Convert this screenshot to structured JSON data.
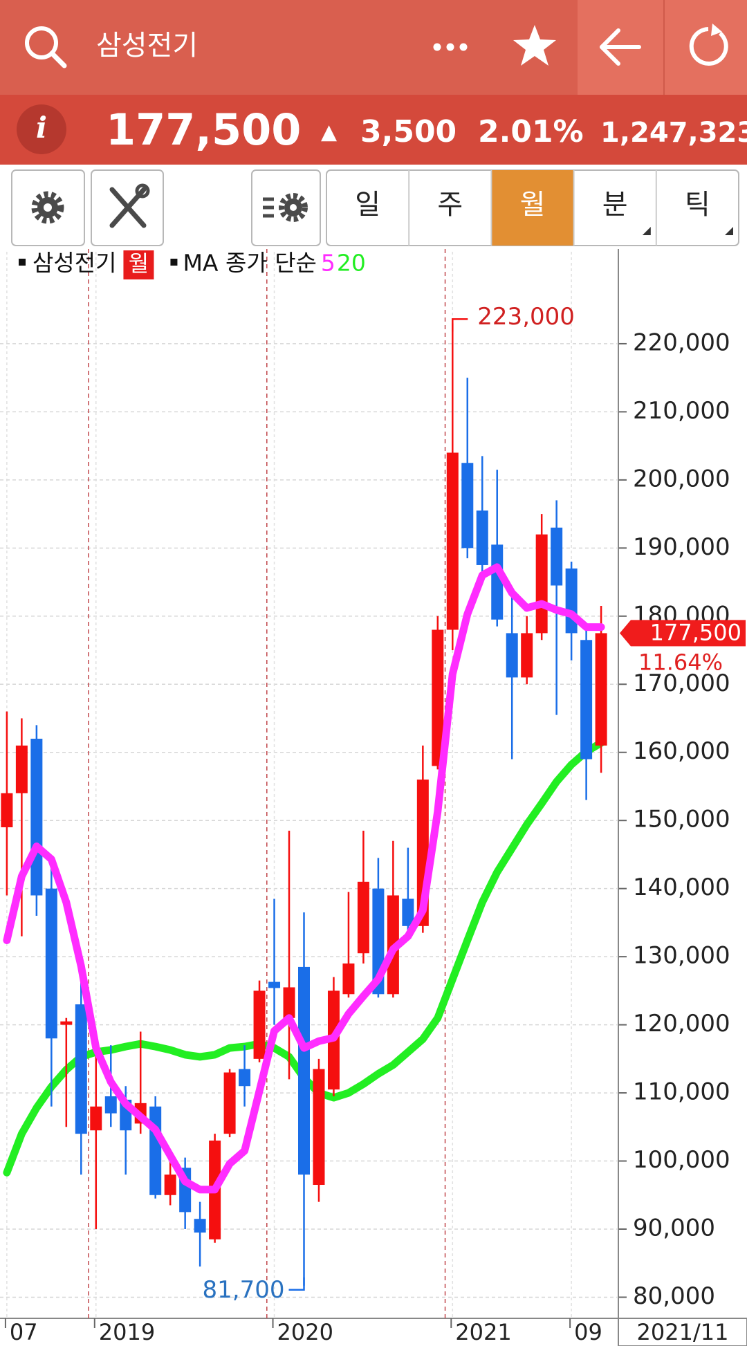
{
  "header": {
    "title": "삼성전기"
  },
  "quote": {
    "info": "i",
    "price": "177,500",
    "arrow": "▲",
    "change": "3,500",
    "change_pct": "2.01%",
    "volume": "1,247,323"
  },
  "toolbar": {
    "tabs": [
      "일",
      "주",
      "월",
      "분",
      "틱"
    ],
    "active_tab": 2
  },
  "chart_data": {
    "type": "candlestick",
    "legend_badge": "월",
    "ma_label": "MA 종가 단순",
    "categories": [
      "07",
      null,
      null,
      null,
      null,
      null,
      "2019",
      null,
      null,
      null,
      null,
      null,
      null,
      null,
      null,
      null,
      null,
      null,
      "2020",
      null,
      null,
      null,
      null,
      null,
      null,
      null,
      null,
      null,
      null,
      null,
      "2021",
      null,
      null,
      null,
      null,
      null,
      null,
      null,
      "09",
      null,
      null
    ],
    "x_cursor_label": "2021/11",
    "series": [
      {
        "name": "삼성전기",
        "up_color": "#f50f0f",
        "down_color": "#1a6ee8",
        "open": [
          149000,
          154000,
          162000,
          140000,
          120000,
          123000,
          104500,
          109500,
          109000,
          105500,
          108000,
          95000,
          99000,
          91500,
          88500,
          104000,
          113500,
          115000,
          126300,
          121000,
          128500,
          96500,
          110500,
          124500,
          130500,
          140000,
          124500,
          138500,
          134500,
          158000,
          178000,
          202500,
          195500,
          190500,
          177500,
          171000,
          177500,
          193000,
          187000,
          176500,
          161000
        ],
        "high": [
          166000,
          165000,
          164000,
          144000,
          121000,
          127000,
          116000,
          117000,
          111000,
          119000,
          109500,
          100500,
          100500,
          94000,
          104000,
          113500,
          117000,
          126500,
          138500,
          148500,
          136500,
          115000,
          127000,
          139500,
          148500,
          144500,
          147000,
          146000,
          161000,
          180000,
          223000,
          215000,
          203500,
          201500,
          183500,
          180000,
          195000,
          197000,
          188000,
          178500,
          181500
        ],
        "low": [
          139000,
          133000,
          136000,
          108000,
          105000,
          98000,
          90000,
          105000,
          98000,
          104000,
          94500,
          93500,
          90000,
          84500,
          88000,
          103500,
          108000,
          114500,
          120000,
          112000,
          81700,
          94000,
          109500,
          124000,
          129000,
          124000,
          124000,
          133500,
          133500,
          157500,
          175000,
          188500,
          186000,
          178500,
          159000,
          170000,
          176500,
          165500,
          173500,
          153000,
          157000
        ],
        "close": [
          154000,
          161000,
          139000,
          118000,
          120500,
          104000,
          108000,
          107000,
          104500,
          108500,
          95000,
          98000,
          92500,
          89500,
          103000,
          113000,
          111000,
          125000,
          125400,
          125500,
          98000,
          113500,
          125000,
          129000,
          141000,
          124500,
          139000,
          134500,
          156000,
          178000,
          204000,
          190000,
          187500,
          179500,
          171000,
          177500,
          192000,
          184500,
          177500,
          159000,
          177500
        ]
      },
      {
        "name": "5",
        "color": "#ff2cff",
        "values": [
          132400,
          141800,
          146200,
          144300,
          138000,
          128600,
          116600,
          111600,
          108400,
          106500,
          104600,
          100800,
          97000,
          95800,
          95800,
          99600,
          101500,
          110300,
          119100,
          121000,
          116600,
          117600,
          118100,
          121600,
          124200,
          126700,
          131100,
          133000,
          136800,
          151300,
          171500,
          180300,
          186000,
          187200,
          183400,
          181200,
          181800,
          180900,
          180300,
          178400,
          178400
        ]
      },
      {
        "name": "20",
        "color": "#22ee22",
        "values": [
          98300,
          104000,
          107800,
          110900,
          113400,
          115300,
          116000,
          116300,
          116800,
          117200,
          116800,
          116300,
          115600,
          115300,
          115600,
          116600,
          116800,
          117200,
          116600,
          115300,
          112200,
          110000,
          109300,
          110000,
          111300,
          112800,
          114100,
          116000,
          117900,
          121000,
          126700,
          132400,
          138000,
          142400,
          145900,
          149400,
          152500,
          155700,
          158200,
          160100,
          161400
        ]
      }
    ],
    "ylim": [
      76900,
      233500
    ],
    "yticks": [
      {
        "value": 80000,
        "label": "80,000"
      },
      {
        "value": 90000,
        "label": "90,000"
      },
      {
        "value": 100000,
        "label": "100,000"
      },
      {
        "value": 110000,
        "label": "110,000"
      },
      {
        "value": 120000,
        "label": "120,000"
      },
      {
        "value": 130000,
        "label": "130,000"
      },
      {
        "value": 140000,
        "label": "140,000"
      },
      {
        "value": 150000,
        "label": "150,000"
      },
      {
        "value": 160000,
        "label": "160,000"
      },
      {
        "value": 170000,
        "label": "170,000"
      },
      {
        "value": 180000,
        "label": "180,000"
      },
      {
        "value": 190000,
        "label": "190,000"
      },
      {
        "value": 200000,
        "label": "200,000"
      },
      {
        "value": 210000,
        "label": "210,000"
      },
      {
        "value": 220000,
        "label": "220,000"
      }
    ],
    "grid": true,
    "high_marker": {
      "value": 223000,
      "label": "223,000"
    },
    "low_marker": {
      "value": 81700,
      "label": "81,700"
    },
    "price_tag": {
      "value": 177500,
      "label": "177,500"
    },
    "price_tag_change": "11.64%"
  }
}
